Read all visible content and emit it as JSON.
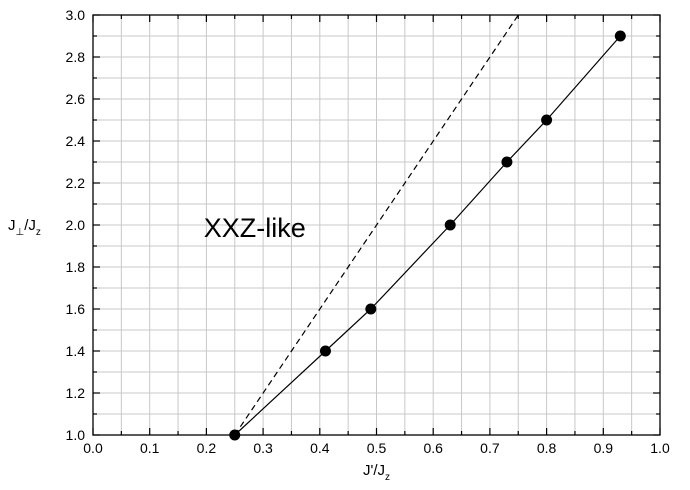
{
  "chart_data": {
    "type": "line",
    "title": "",
    "xlabel": {
      "main": "J'/J",
      "sub": "z"
    },
    "ylabel": {
      "main": "J",
      "sub1": "⊥",
      "mid": "/J",
      "sub2": "z"
    },
    "xlim": [
      0.0,
      1.0
    ],
    "ylim": [
      1.0,
      3.0
    ],
    "xticks": [
      "0.0",
      "0.1",
      "0.2",
      "0.3",
      "0.4",
      "0.5",
      "0.6",
      "0.7",
      "0.8",
      "0.9",
      "1.0"
    ],
    "yticks": [
      "1.0",
      "1.2",
      "1.4",
      "1.6",
      "1.8",
      "2.0",
      "2.2",
      "2.4",
      "2.6",
      "2.8",
      "3.0"
    ],
    "grid": true,
    "annotations": [
      {
        "text": "XXZ-like",
        "x": 0.28,
        "y": 1.99
      }
    ],
    "series": [
      {
        "style": "solid-with-markers",
        "color": "#000000",
        "x": [
          0.25,
          0.41,
          0.49,
          0.63,
          0.73,
          0.8,
          0.93
        ],
        "y": [
          1.0,
          1.4,
          1.6,
          2.0,
          2.3,
          2.5,
          2.9
        ]
      },
      {
        "style": "dashed",
        "color": "#000000",
        "x": [
          0.25,
          0.75
        ],
        "y": [
          1.0,
          3.0
        ]
      }
    ]
  }
}
